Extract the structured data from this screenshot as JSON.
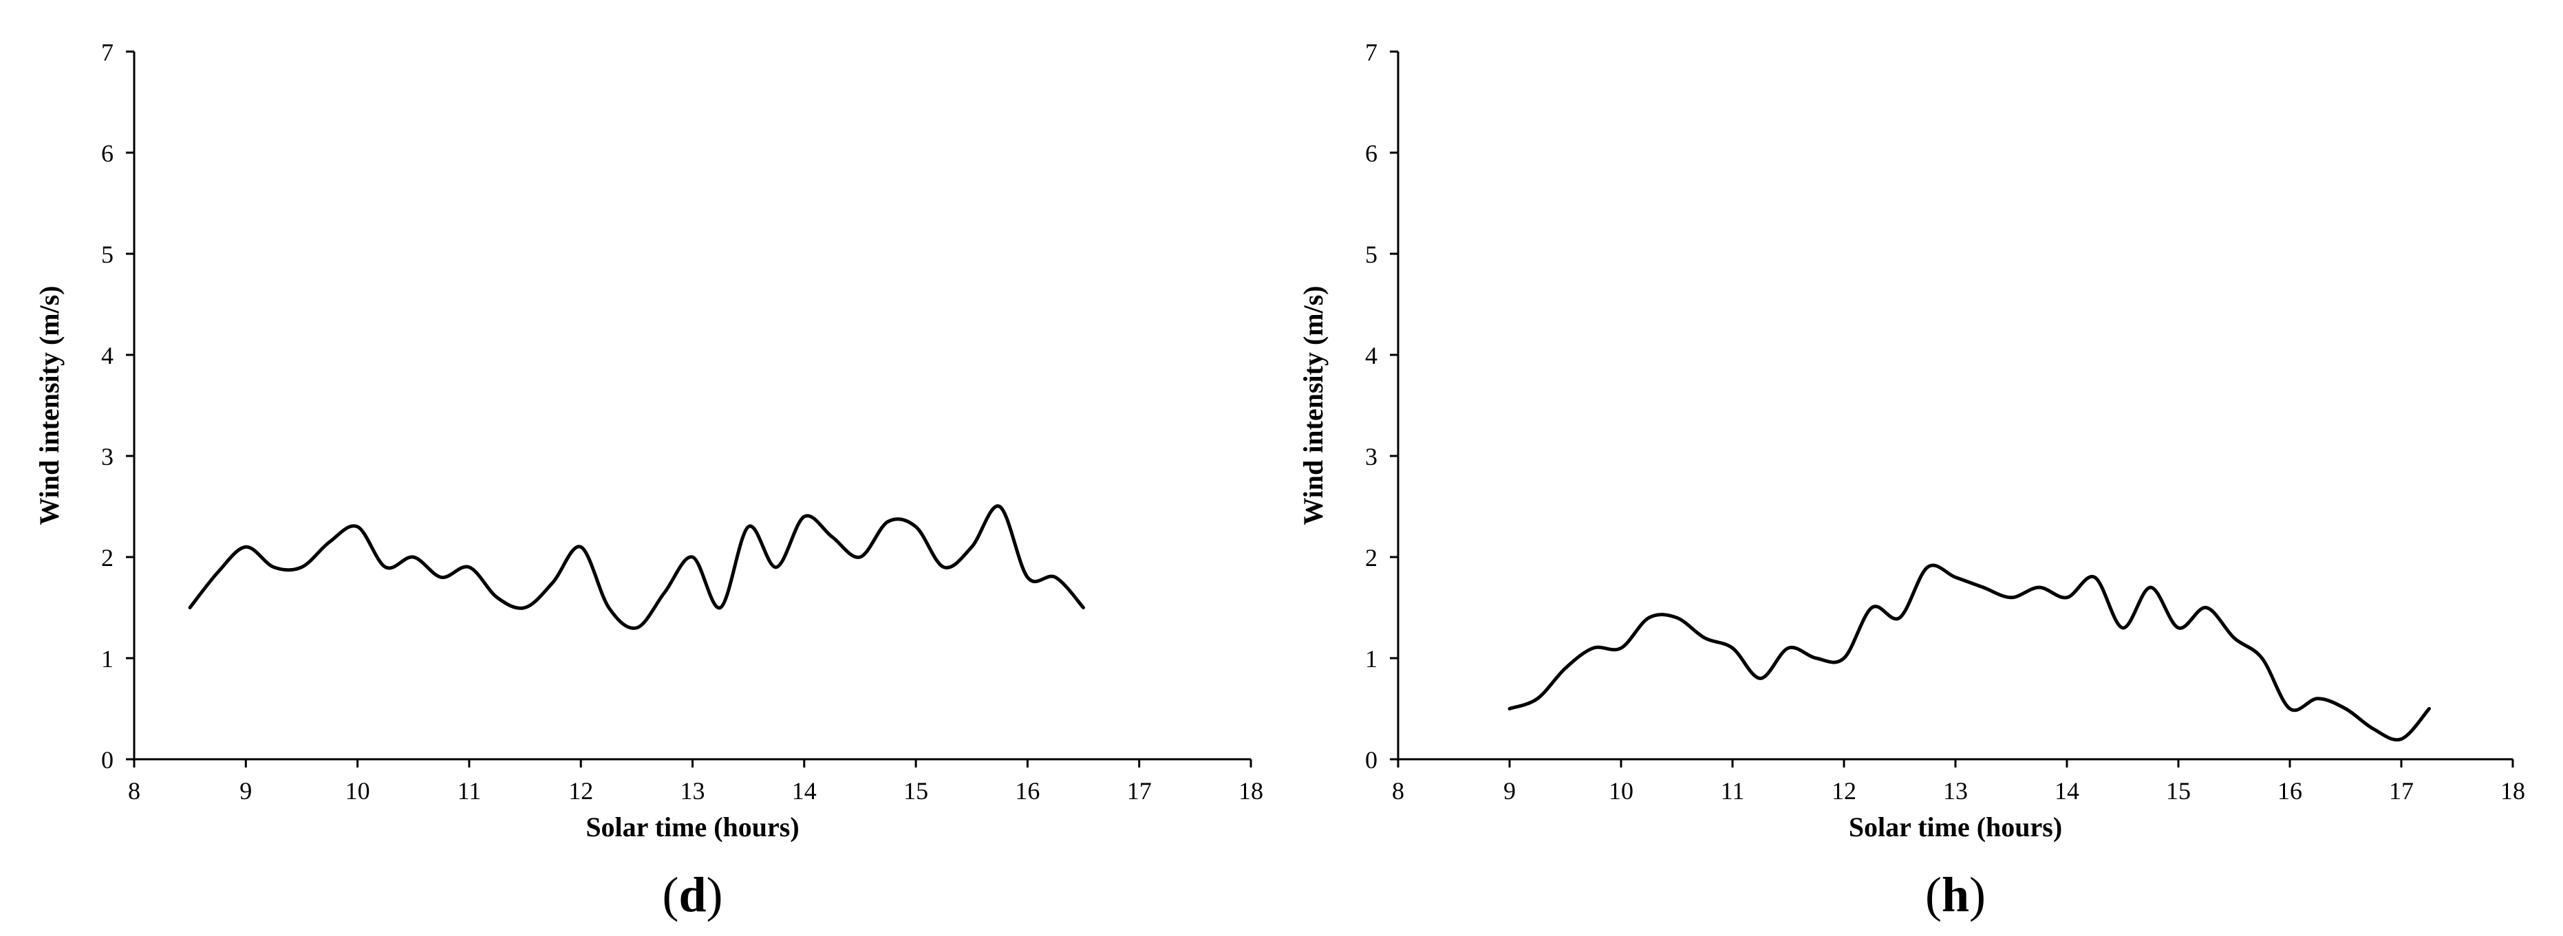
{
  "chart_data": [
    {
      "type": "line",
      "panel_label": "d",
      "title": "",
      "xlabel": "Solar time (hours)",
      "ylabel": "Wind intensity (m/s)",
      "xlim": [
        8,
        18
      ],
      "ylim": [
        0,
        7
      ],
      "xticks": [
        8,
        9,
        10,
        11,
        12,
        13,
        14,
        15,
        16,
        17,
        18
      ],
      "yticks": [
        0,
        1,
        2,
        3,
        4,
        5,
        6,
        7
      ],
      "grid": false,
      "series": [
        {
          "x": [
            8.5,
            8.75,
            9.0,
            9.25,
            9.5,
            9.75,
            10.0,
            10.25,
            10.5,
            10.75,
            11.0,
            11.25,
            11.5,
            11.75,
            12.0,
            12.25,
            12.5,
            12.75,
            13.0,
            13.25,
            13.5,
            13.75,
            14.0,
            14.25,
            14.5,
            14.75,
            15.0,
            15.25,
            15.5,
            15.75,
            16.0,
            16.25,
            16.5
          ],
          "y": [
            1.5,
            1.85,
            2.1,
            1.9,
            1.9,
            2.15,
            2.3,
            1.9,
            2.0,
            1.8,
            1.9,
            1.6,
            1.5,
            1.75,
            2.1,
            1.5,
            1.3,
            1.65,
            2.0,
            1.5,
            2.3,
            1.9,
            2.4,
            2.2,
            2.0,
            2.35,
            2.3,
            1.9,
            2.1,
            2.5,
            1.8,
            1.8,
            1.5
          ]
        }
      ]
    },
    {
      "type": "line",
      "panel_label": "h",
      "title": "",
      "xlabel": "Solar time (hours)",
      "ylabel": "Wind intensity (m/s)",
      "xlim": [
        8,
        18
      ],
      "ylim": [
        0,
        7
      ],
      "xticks": [
        8,
        9,
        10,
        11,
        12,
        13,
        14,
        15,
        16,
        17,
        18
      ],
      "yticks": [
        0,
        1,
        2,
        3,
        4,
        5,
        6,
        7
      ],
      "grid": false,
      "series": [
        {
          "x": [
            9.0,
            9.25,
            9.5,
            9.75,
            10.0,
            10.25,
            10.5,
            10.75,
            11.0,
            11.25,
            11.5,
            11.75,
            12.0,
            12.25,
            12.5,
            12.75,
            13.0,
            13.25,
            13.5,
            13.75,
            14.0,
            14.25,
            14.5,
            14.75,
            15.0,
            15.25,
            15.5,
            15.75,
            16.0,
            16.25,
            16.5,
            16.75,
            17.0,
            17.25
          ],
          "y": [
            0.5,
            0.6,
            0.9,
            1.1,
            1.1,
            1.4,
            1.4,
            1.2,
            1.1,
            0.8,
            1.1,
            1.0,
            1.0,
            1.5,
            1.4,
            1.9,
            1.8,
            1.7,
            1.6,
            1.7,
            1.6,
            1.8,
            1.3,
            1.7,
            1.3,
            1.5,
            1.2,
            1.0,
            0.5,
            0.6,
            0.5,
            0.3,
            0.2,
            0.5
          ]
        }
      ]
    }
  ]
}
